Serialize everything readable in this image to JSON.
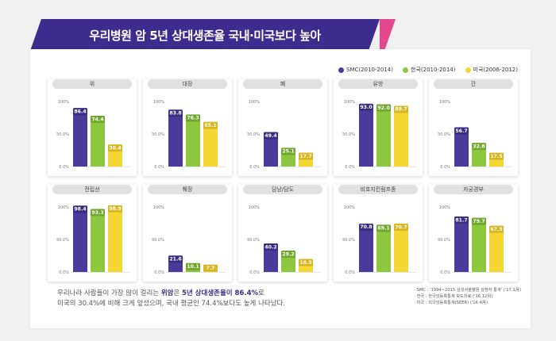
{
  "header": {
    "title": "우리병원 암 5년 상대생존율 국내·미국보다 높아"
  },
  "colors": {
    "banner": "#3d2c8d",
    "accent": "#e3488e",
    "smc": "#4b3a9a",
    "korea": "#8dc63f",
    "usa": "#f5d633"
  },
  "chart_data": {
    "type": "bar",
    "series": [
      {
        "name": "SMC(2010-2014)",
        "color": "#4b3a9a"
      },
      {
        "name": "한국(2010-2014)",
        "color": "#8dc63f"
      },
      {
        "name": "미국(2006-2012)",
        "color": "#f5d633"
      }
    ],
    "y_ticks": [
      "100%",
      "50.0%",
      "0.0%"
    ],
    "ylim": [
      0,
      100
    ],
    "panels": [
      {
        "title": "위",
        "values": [
          86.4,
          74.4,
          30.4
        ],
        "labels": [
          "86.4",
          "74.4",
          "30.4"
        ]
      },
      {
        "title": "대장",
        "values": [
          83.8,
          76.3,
          65.1
        ],
        "labels": [
          "83.8",
          "76.3",
          "65.1"
        ]
      },
      {
        "title": "폐",
        "values": [
          49.4,
          25.1,
          17.7
        ],
        "labels": [
          "49.4",
          "25.1",
          "17.7"
        ]
      },
      {
        "title": "유방",
        "values": [
          93.0,
          92.0,
          89.7
        ],
        "labels": [
          "93.0",
          "92.0",
          "89.7"
        ]
      },
      {
        "title": "간",
        "values": [
          56.7,
          32.8,
          17.5
        ],
        "labels": [
          "56.7",
          "32.8",
          "17.5"
        ]
      },
      {
        "title": "전립선",
        "values": [
          98.4,
          93.3,
          98.9
        ],
        "labels": [
          "98.4",
          "93.3",
          "98.9"
        ]
      },
      {
        "title": "췌장",
        "values": [
          21.6,
          10.1,
          7.7
        ],
        "labels": [
          "21.6",
          "10.1",
          "7.7"
        ]
      },
      {
        "title": "담낭/담도",
        "values": [
          40.2,
          29.2,
          16.5
        ],
        "labels": [
          "40.2",
          "29.2",
          "16.5"
        ]
      },
      {
        "title": "비호지킨림프종",
        "values": [
          70.8,
          69.1,
          70.7
        ],
        "labels": [
          "70.8",
          "69.1",
          "70.7"
        ]
      },
      {
        "title": "자궁경부",
        "values": [
          81.7,
          79.7,
          67.5
        ],
        "labels": [
          "81.7",
          "79.7",
          "67.5"
        ]
      }
    ]
  },
  "description": {
    "line1_a": "우리나라 사람들이 가장 많이 걸리는 ",
    "line1_hl1": "위암",
    "line1_b": "은 ",
    "line1_hl2": "5년 상대생존율이 86.4%",
    "line1_c": "로",
    "line2": "미국의 30.4%에 비해 크게 앞섰으며, 국내 평균인 74.4%보다도 높게 나타났다."
  },
  "notes": [
    "· SMC : '1994~2015 삼성서울병원 암환자 통계' ('17.1月)",
    "· 한국 : 한국암등록통계 보도자료 ('16.12月)",
    "· 미국 : 미국암등록통계(SEER) ('16.4月)"
  ]
}
